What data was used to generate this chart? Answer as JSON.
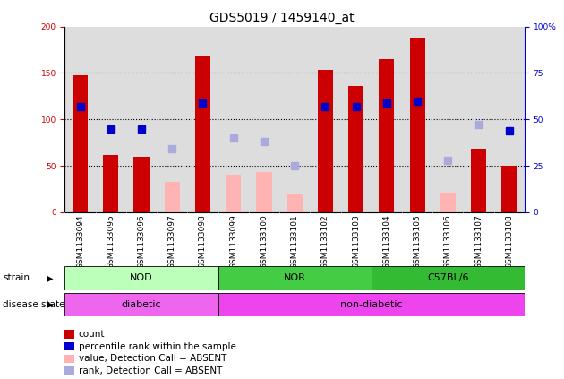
{
  "title": "GDS5019 / 1459140_at",
  "samples": [
    "GSM1133094",
    "GSM1133095",
    "GSM1133096",
    "GSM1133097",
    "GSM1133098",
    "GSM1133099",
    "GSM1133100",
    "GSM1133101",
    "GSM1133102",
    "GSM1133103",
    "GSM1133104",
    "GSM1133105",
    "GSM1133106",
    "GSM1133107",
    "GSM1133108"
  ],
  "count_values": [
    148,
    62,
    60,
    null,
    168,
    null,
    null,
    null,
    153,
    136,
    165,
    188,
    null,
    68,
    50
  ],
  "count_absent": [
    null,
    null,
    null,
    33,
    null,
    40,
    43,
    19,
    null,
    null,
    null,
    null,
    21,
    null,
    null
  ],
  "percentile_values": [
    57,
    45,
    45,
    null,
    59,
    null,
    null,
    null,
    57,
    57,
    59,
    60,
    null,
    null,
    44
  ],
  "percentile_absent": [
    null,
    null,
    null,
    34,
    null,
    40,
    38,
    25,
    null,
    null,
    null,
    null,
    28,
    47,
    null
  ],
  "count_color": "#cc0000",
  "count_absent_color": "#ffb3b3",
  "percentile_color": "#0000cc",
  "percentile_absent_color": "#aaaadd",
  "ylim_left": [
    0,
    200
  ],
  "ylim_right": [
    0,
    100
  ],
  "yticks_left": [
    0,
    50,
    100,
    150,
    200
  ],
  "yticks_right": [
    0,
    25,
    50,
    75,
    100
  ],
  "strain_groups": [
    {
      "label": "NOD",
      "start": 0,
      "end": 5,
      "color": "#bbffbb"
    },
    {
      "label": "NOR",
      "start": 5,
      "end": 10,
      "color": "#44cc44"
    },
    {
      "label": "C57BL/6",
      "start": 10,
      "end": 15,
      "color": "#33bb33"
    }
  ],
  "disease_groups": [
    {
      "label": "diabetic",
      "start": 0,
      "end": 5,
      "color": "#ee66ee"
    },
    {
      "label": "non-diabetic",
      "start": 5,
      "end": 15,
      "color": "#ee44ee"
    }
  ],
  "strain_label": "strain",
  "disease_label": "disease state",
  "legend_items": [
    {
      "label": "count",
      "color": "#cc0000"
    },
    {
      "label": "percentile rank within the sample",
      "color": "#0000cc"
    },
    {
      "label": "value, Detection Call = ABSENT",
      "color": "#ffb3b3"
    },
    {
      "label": "rank, Detection Call = ABSENT",
      "color": "#aaaadd"
    }
  ],
  "bar_width": 0.5,
  "marker_size": 6,
  "background_color": "#ffffff",
  "plot_bg_color": "#dddddd",
  "title_fontsize": 10,
  "tick_fontsize": 6.5
}
